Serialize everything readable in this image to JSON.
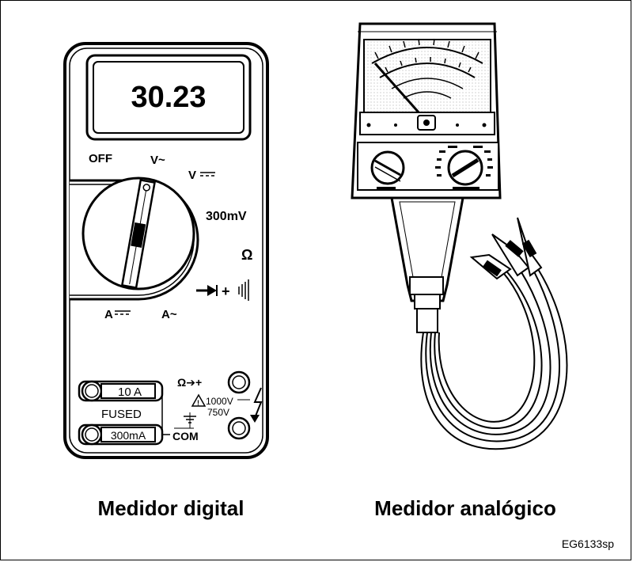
{
  "digital_meter": {
    "display_value": "30.23",
    "dial_labels": {
      "off": "OFF",
      "v_ac": "V~",
      "v_dc": "V",
      "mv": "300mV",
      "ohm": "Ω",
      "continuity": "➔ + ⦀",
      "a_dc": "A",
      "a_ac": "A~"
    },
    "jacks": {
      "ten_a": "10 A",
      "fused": "FUSED",
      "ma": "300mA",
      "com": "COM",
      "ohm_diode": "Ω➔+",
      "v1000": "1000V",
      "v750": "750V"
    },
    "caption": "Medidor digital"
  },
  "analog_meter": {
    "caption": "Medidor analógico"
  },
  "figure_code": "EG6133sp"
}
